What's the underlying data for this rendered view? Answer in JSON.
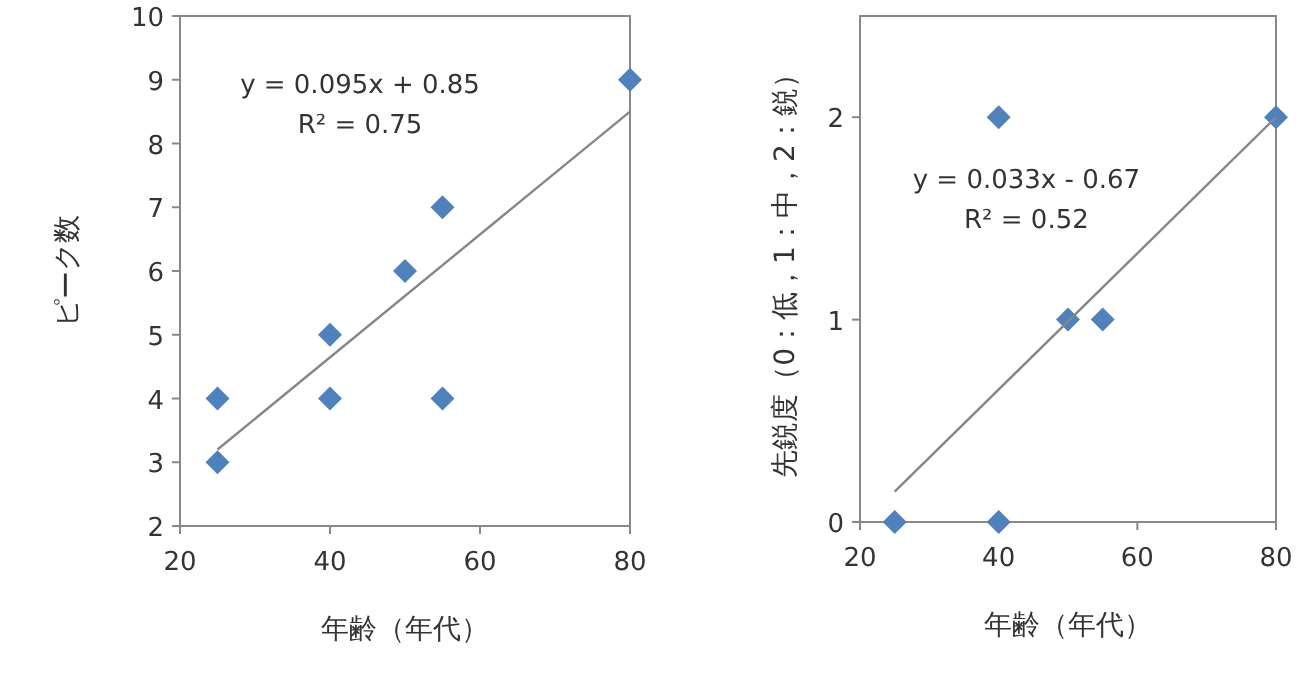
{
  "chart_data": [
    {
      "type": "scatter",
      "xlabel": "年齢（年代）",
      "ylabel": "ピーク数",
      "xlim": [
        20,
        80
      ],
      "ylim": [
        2,
        10
      ],
      "xticks": [
        20,
        40,
        60,
        80
      ],
      "yticks": [
        2,
        3,
        4,
        5,
        6,
        7,
        8,
        9,
        10
      ],
      "annotations": [
        "y = 0.095x + 0.85",
        "R² = 0.75"
      ],
      "series": [
        {
          "color": "#4f81bd",
          "marker": "diamond",
          "x": [
            25,
            25,
            40,
            40,
            50,
            55,
            55,
            80
          ],
          "values": [
            4,
            3,
            5,
            4,
            6,
            7,
            4,
            9
          ]
        },
        {
          "type": "line",
          "marker": "none",
          "color": "#868686",
          "x": [
            25,
            80
          ],
          "values": [
            3.2,
            8.5
          ]
        }
      ]
    },
    {
      "type": "scatter",
      "xlabel": "年齢（年代）",
      "ylabel": "先鋭度（0：低，1：中，2：鋭）",
      "xlim": [
        20,
        80
      ],
      "ylim": [
        0,
        2.5
      ],
      "xticks": [
        20,
        40,
        60,
        80
      ],
      "yticks": [
        0,
        1,
        2
      ],
      "annotations": [
        "y = 0.033x - 0.67",
        "R² = 0.52"
      ],
      "series": [
        {
          "color": "#4f81bd",
          "marker": "diamond",
          "x": [
            25,
            40,
            40,
            50,
            55,
            80
          ],
          "values": [
            0,
            2,
            0,
            1,
            1,
            2
          ]
        },
        {
          "type": "line",
          "marker": "none",
          "color": "#868686",
          "x": [
            25,
            80
          ],
          "values": [
            0.15,
            2.0
          ]
        }
      ]
    }
  ]
}
